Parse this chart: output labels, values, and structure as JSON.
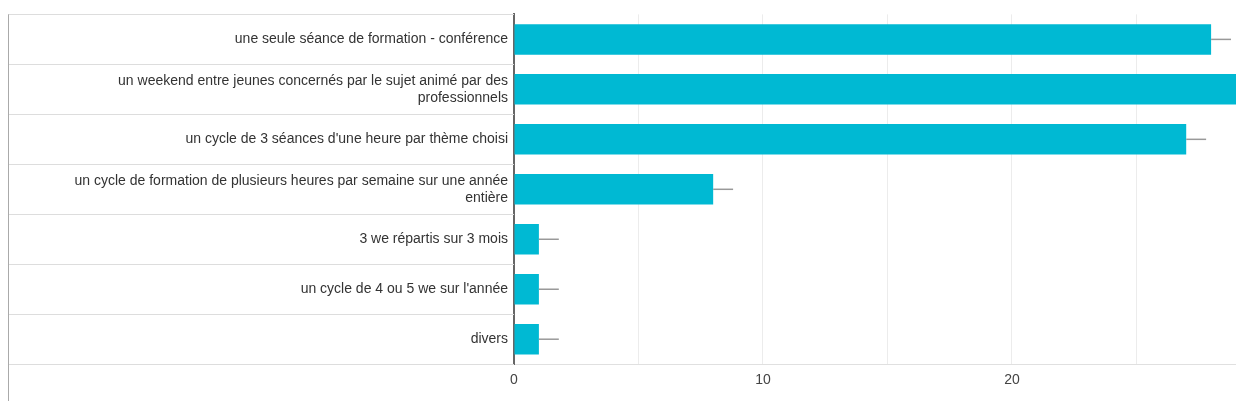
{
  "chart_data": {
    "type": "bar",
    "orientation": "horizontal",
    "categories": [
      "une seule séance de formation - conférence",
      "un weekend entre jeunes concernés par le sujet animé par des professionnels",
      "un cycle de 3 séances d'une heure par thème choisi",
      "un cycle de formation de plusieurs heures par semaine sur une année entière",
      "3 we répartis sur 3 mois",
      "un cycle de 4 ou 5 we sur l'année",
      "divers"
    ],
    "values": [
      28,
      29,
      27,
      8,
      1,
      1,
      1
    ],
    "errors": [
      [
        28,
        28.8
      ],
      null,
      [
        27,
        27.8
      ],
      [
        8,
        8.8
      ],
      [
        1,
        1.8
      ],
      [
        1,
        1.8
      ],
      [
        1,
        1.8
      ]
    ],
    "color": "#00b9d3",
    "xlim": [
      0,
      29
    ],
    "xticks": [
      0,
      {
        "value": 5,
        "label": null
      },
      10,
      {
        "value": 15,
        "label": null
      },
      20,
      {
        "value": 25,
        "label": null
      }
    ],
    "grid": "x",
    "legend": false
  }
}
